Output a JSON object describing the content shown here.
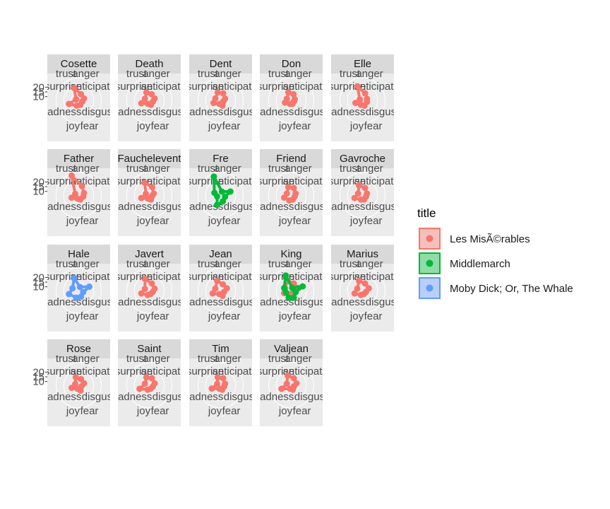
{
  "chart_data": {
    "type": "radar",
    "facet_layout": "wrap, 5 columns",
    "axis_labels": [
      "anger",
      "anticipation",
      "disgust",
      "fear",
      "joy",
      "sadness",
      "surprise",
      "trust"
    ],
    "r_ticks": [
      10,
      15,
      20
    ],
    "r_max": 24,
    "legend": {
      "title": "title",
      "position": "right",
      "entries": [
        {
          "label": "Les MisÃ©rables",
          "color": "#F8766D"
        },
        {
          "label": "Middlemarch",
          "color": "#00BA38"
        },
        {
          "label": "Moby Dick; Or, The Whale",
          "color": "#619CFF"
        }
      ]
    },
    "panels": [
      {
        "name": "Cosette",
        "series": [
          {
            "book": 0,
            "values": [
              7,
              6,
              4,
              5,
              6,
              11,
              3,
              14
            ]
          }
        ]
      },
      {
        "name": "Death",
        "series": [
          {
            "book": 0,
            "values": [
              7,
              6,
              4,
              5,
              4,
              9,
              5,
              9
            ]
          }
        ]
      },
      {
        "name": "Dent",
        "series": [
          {
            "book": 0,
            "values": [
              8,
              5,
              3,
              6,
              4,
              8,
              6,
              9
            ]
          }
        ]
      },
      {
        "name": "Don",
        "series": [
          {
            "book": 0,
            "values": [
              7,
              4,
              3,
              4,
              4,
              7,
              5,
              9
            ]
          }
        ]
      },
      {
        "name": "Elle",
        "series": [
          {
            "book": 0,
            "values": [
              8,
              5,
              5,
              6,
              5,
              8,
              3,
              16
            ]
          }
        ]
      },
      {
        "name": "Father",
        "series": [
          {
            "book": 0,
            "values": [
              10,
              6,
              5,
              5,
              4,
              8,
              4,
              22
            ]
          }
        ]
      },
      {
        "name": "Fauchelevent",
        "series": [
          {
            "book": 0,
            "values": [
              9,
              5,
              3,
              5,
              4,
              9,
              4,
              14
            ]
          }
        ]
      },
      {
        "name": "Fre",
        "series": [
          {
            "book": 1,
            "values": [
              4,
              11,
              5,
              7,
              11,
              4,
              7,
              21
            ]
          }
        ]
      },
      {
        "name": "Friend",
        "series": [
          {
            "book": 0,
            "values": [
              8,
              5,
              4,
              5,
              6,
              8,
              5,
              9
            ]
          }
        ]
      },
      {
        "name": "Gavroche",
        "series": [
          {
            "book": 0,
            "values": [
              8,
              5,
              4,
              5,
              5,
              9,
              5,
              11
            ]
          }
        ]
      },
      {
        "name": "Hale",
        "series": [
          {
            "book": 2,
            "values": [
              4,
              12,
              5,
              7,
              8,
              11,
              7,
              14
            ]
          }
        ]
      },
      {
        "name": "Javert",
        "series": [
          {
            "book": 0,
            "values": [
              8,
              6,
              4,
              4,
              5,
              9,
              5,
              13
            ]
          }
        ]
      },
      {
        "name": "Jean",
        "series": [
          {
            "book": 0,
            "values": [
              7,
              7,
              4,
              6,
              4,
              9,
              6,
              11
            ]
          }
        ]
      },
      {
        "name": "King",
        "series": [
          {
            "book": 0,
            "values": [
              8,
              8,
              3,
              5,
              4,
              8,
              7,
              11
            ]
          },
          {
            "book": 1,
            "values": [
              3,
              13,
              5,
              8,
              8,
              6,
              8,
              17
            ]
          }
        ]
      },
      {
        "name": "Marius",
        "series": [
          {
            "book": 0,
            "values": [
              8,
              7,
              4,
              4,
              5,
              9,
              6,
              11
            ]
          }
        ]
      },
      {
        "name": "Rose",
        "series": [
          {
            "book": 0,
            "values": [
              7,
              6,
              3,
              6,
              4,
              8,
              4,
              9
            ]
          }
        ]
      },
      {
        "name": "Saint",
        "series": [
          {
            "book": 0,
            "values": [
              8,
              6,
              4,
              4,
              5,
              11,
              5,
              9
            ]
          }
        ]
      },
      {
        "name": "Tim",
        "series": [
          {
            "book": 0,
            "values": [
              8,
              5,
              4,
              5,
              4,
              10,
              4,
              9
            ]
          }
        ]
      },
      {
        "name": "Valjean",
        "series": [
          {
            "book": 0,
            "values": [
              8,
              6,
              3,
              5,
              4,
              11,
              5,
              11
            ]
          }
        ]
      }
    ]
  }
}
